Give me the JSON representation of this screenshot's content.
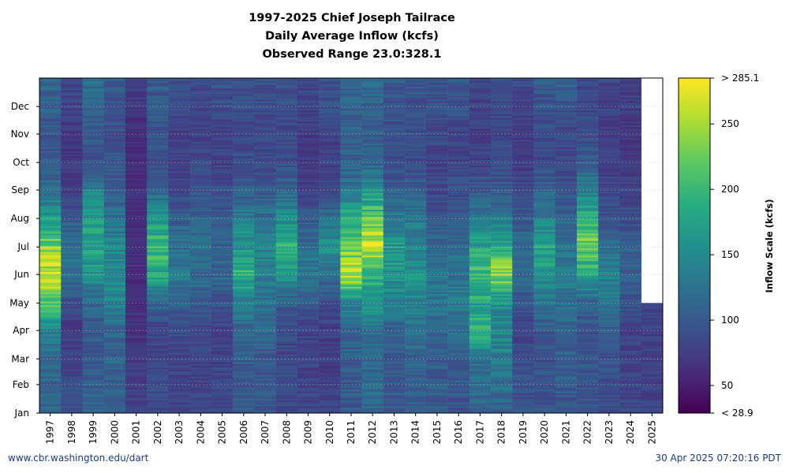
{
  "title": {
    "line1": "1997-2025 Chief Joseph Tailrace",
    "line2": "Daily Average Inflow (kcfs)",
    "line3": "Observed Range 23.0:328.1"
  },
  "footer": {
    "left": "www.cbr.washington.edu/dart",
    "right": "30 Apr 2025 07:20:16 PDT"
  },
  "chart_data": {
    "type": "heatmap",
    "x": [
      "1997",
      "1998",
      "1999",
      "2000",
      "2001",
      "2002",
      "2003",
      "2004",
      "2005",
      "2006",
      "2007",
      "2008",
      "2009",
      "2010",
      "2011",
      "2012",
      "2013",
      "2014",
      "2015",
      "2016",
      "2017",
      "2018",
      "2019",
      "2020",
      "2021",
      "2022",
      "2023",
      "2024",
      "2025"
    ],
    "y_ticks": [
      "Jan",
      "Feb",
      "Mar",
      "Apr",
      "May",
      "Jun",
      "Jul",
      "Aug",
      "Sep",
      "Oct",
      "Nov",
      "Dec"
    ],
    "y_tick_days": [
      1,
      32,
      60,
      91,
      121,
      152,
      182,
      213,
      244,
      274,
      305,
      335
    ],
    "ylim": [
      1,
      366
    ],
    "colorbar": {
      "label": "Inflow Scale (kcfs)",
      "min": 28.9,
      "max": 285.1,
      "min_label": "< 28.9",
      "max_label": "> 285.1",
      "ticks": [
        50,
        100,
        150,
        200,
        250
      ],
      "colormap": "viridis"
    },
    "last_observed_day_2025": 120,
    "profiles": {
      "1997": [
        [
          1,
          110
        ],
        [
          60,
          115
        ],
        [
          91,
          145
        ],
        [
          121,
          215
        ],
        [
          152,
          255
        ],
        [
          182,
          235
        ],
        [
          213,
          170
        ],
        [
          244,
          120
        ],
        [
          274,
          100
        ],
        [
          305,
          95
        ],
        [
          335,
          110
        ],
        [
          366,
          115
        ]
      ],
      "1998": [
        [
          1,
          95
        ],
        [
          60,
          80
        ],
        [
          91,
          75
        ],
        [
          121,
          90
        ],
        [
          152,
          130
        ],
        [
          182,
          120
        ],
        [
          213,
          100
        ],
        [
          244,
          75
        ],
        [
          274,
          70
        ],
        [
          305,
          70
        ],
        [
          335,
          80
        ],
        [
          366,
          85
        ]
      ],
      "1999": [
        [
          1,
          110
        ],
        [
          60,
          100
        ],
        [
          91,
          100
        ],
        [
          121,
          115
        ],
        [
          152,
          160
        ],
        [
          182,
          175
        ],
        [
          213,
          170
        ],
        [
          244,
          140
        ],
        [
          274,
          100
        ],
        [
          305,
          100
        ],
        [
          335,
          110
        ],
        [
          366,
          120
        ]
      ],
      "2000": [
        [
          1,
          105
        ],
        [
          60,
          110
        ],
        [
          91,
          115
        ],
        [
          121,
          145
        ],
        [
          152,
          150
        ],
        [
          182,
          145
        ],
        [
          213,
          125
        ],
        [
          244,
          105
        ],
        [
          274,
          95
        ],
        [
          305,
          90
        ],
        [
          335,
          95
        ],
        [
          366,
          100
        ]
      ],
      "2001": [
        [
          1,
          80
        ],
        [
          60,
          70
        ],
        [
          91,
          65
        ],
        [
          121,
          65
        ],
        [
          152,
          60
        ],
        [
          182,
          70
        ],
        [
          213,
          60
        ],
        [
          244,
          65
        ],
        [
          274,
          60
        ],
        [
          305,
          60
        ],
        [
          335,
          70
        ],
        [
          366,
          75
        ]
      ],
      "2002": [
        [
          1,
          90
        ],
        [
          60,
          85
        ],
        [
          91,
          80
        ],
        [
          121,
          120
        ],
        [
          152,
          185
        ],
        [
          182,
          200
        ],
        [
          213,
          160
        ],
        [
          244,
          110
        ],
        [
          274,
          95
        ],
        [
          305,
          95
        ],
        [
          335,
          100
        ],
        [
          366,
          100
        ]
      ],
      "2003": [
        [
          1,
          85
        ],
        [
          60,
          80
        ],
        [
          91,
          90
        ],
        [
          121,
          110
        ],
        [
          152,
          130
        ],
        [
          182,
          125
        ],
        [
          213,
          105
        ],
        [
          244,
          85
        ],
        [
          274,
          80
        ],
        [
          305,
          80
        ],
        [
          335,
          85
        ],
        [
          366,
          90
        ]
      ],
      "2004": [
        [
          1,
          85
        ],
        [
          60,
          80
        ],
        [
          91,
          85
        ],
        [
          121,
          100
        ],
        [
          152,
          120
        ],
        [
          182,
          120
        ],
        [
          213,
          105
        ],
        [
          244,
          95
        ],
        [
          274,
          85
        ],
        [
          305,
          80
        ],
        [
          335,
          85
        ],
        [
          366,
          90
        ]
      ],
      "2005": [
        [
          1,
          85
        ],
        [
          60,
          80
        ],
        [
          91,
          80
        ],
        [
          121,
          95
        ],
        [
          152,
          115
        ],
        [
          182,
          110
        ],
        [
          213,
          100
        ],
        [
          244,
          90
        ],
        [
          274,
          80
        ],
        [
          305,
          80
        ],
        [
          335,
          90
        ],
        [
          366,
          95
        ]
      ],
      "2006": [
        [
          1,
          100
        ],
        [
          60,
          105
        ],
        [
          91,
          110
        ],
        [
          121,
          140
        ],
        [
          152,
          195
        ],
        [
          182,
          165
        ],
        [
          213,
          140
        ],
        [
          244,
          105
        ],
        [
          274,
          90
        ],
        [
          305,
          85
        ],
        [
          335,
          90
        ],
        [
          366,
          95
        ]
      ],
      "2007": [
        [
          1,
          100
        ],
        [
          60,
          100
        ],
        [
          91,
          115
        ],
        [
          121,
          125
        ],
        [
          152,
          140
        ],
        [
          182,
          145
        ],
        [
          213,
          125
        ],
        [
          244,
          100
        ],
        [
          274,
          85
        ],
        [
          305,
          85
        ],
        [
          335,
          90
        ],
        [
          366,
          95
        ]
      ],
      "2008": [
        [
          1,
          85
        ],
        [
          60,
          85
        ],
        [
          91,
          90
        ],
        [
          121,
          105
        ],
        [
          152,
          170
        ],
        [
          182,
          195
        ],
        [
          213,
          155
        ],
        [
          244,
          110
        ],
        [
          274,
          90
        ],
        [
          305,
          85
        ],
        [
          335,
          90
        ],
        [
          366,
          95
        ]
      ],
      "2009": [
        [
          1,
          85
        ],
        [
          60,
          80
        ],
        [
          91,
          80
        ],
        [
          121,
          100
        ],
        [
          152,
          130
        ],
        [
          182,
          120
        ],
        [
          213,
          100
        ],
        [
          244,
          80
        ],
        [
          274,
          75
        ],
        [
          305,
          75
        ],
        [
          335,
          80
        ],
        [
          366,
          85
        ]
      ],
      "2010": [
        [
          1,
          80
        ],
        [
          60,
          75
        ],
        [
          91,
          75
        ],
        [
          121,
          90
        ],
        [
          152,
          120
        ],
        [
          182,
          155
        ],
        [
          213,
          120
        ],
        [
          244,
          90
        ],
        [
          274,
          80
        ],
        [
          305,
          80
        ],
        [
          335,
          90
        ],
        [
          366,
          95
        ]
      ],
      "2011": [
        [
          1,
          100
        ],
        [
          60,
          105
        ],
        [
          91,
          110
        ],
        [
          121,
          140
        ],
        [
          152,
          270
        ],
        [
          182,
          215
        ],
        [
          213,
          185
        ],
        [
          244,
          130
        ],
        [
          274,
          110
        ],
        [
          305,
          105
        ],
        [
          335,
          110
        ],
        [
          366,
          115
        ]
      ],
      "2012": [
        [
          1,
          115
        ],
        [
          60,
          115
        ],
        [
          91,
          125
        ],
        [
          121,
          170
        ],
        [
          152,
          190
        ],
        [
          182,
          270
        ],
        [
          213,
          220
        ],
        [
          244,
          160
        ],
        [
          274,
          110
        ],
        [
          305,
          105
        ],
        [
          335,
          110
        ],
        [
          366,
          120
        ]
      ],
      "2013": [
        [
          1,
          100
        ],
        [
          60,
          100
        ],
        [
          91,
          110
        ],
        [
          121,
          140
        ],
        [
          152,
          160
        ],
        [
          182,
          165
        ],
        [
          213,
          135
        ],
        [
          244,
          105
        ],
        [
          274,
          90
        ],
        [
          305,
          90
        ],
        [
          335,
          95
        ],
        [
          366,
          100
        ]
      ],
      "2014": [
        [
          1,
          100
        ],
        [
          60,
          110
        ],
        [
          91,
          125
        ],
        [
          121,
          145
        ],
        [
          152,
          155
        ],
        [
          182,
          150
        ],
        [
          213,
          130
        ],
        [
          244,
          105
        ],
        [
          274,
          90
        ],
        [
          305,
          90
        ],
        [
          335,
          95
        ],
        [
          366,
          100
        ]
      ],
      "2015": [
        [
          1,
          100
        ],
        [
          60,
          105
        ],
        [
          91,
          110
        ],
        [
          121,
          130
        ],
        [
          152,
          130
        ],
        [
          182,
          115
        ],
        [
          213,
          95
        ],
        [
          244,
          85
        ],
        [
          274,
          80
        ],
        [
          305,
          85
        ],
        [
          335,
          95
        ],
        [
          366,
          100
        ]
      ],
      "2016": [
        [
          1,
          95
        ],
        [
          60,
          105
        ],
        [
          91,
          120
        ],
        [
          121,
          135
        ],
        [
          152,
          125
        ],
        [
          182,
          115
        ],
        [
          213,
          100
        ],
        [
          244,
          90
        ],
        [
          274,
          85
        ],
        [
          305,
          85
        ],
        [
          335,
          95
        ],
        [
          366,
          100
        ]
      ],
      "2017": [
        [
          1,
          110
        ],
        [
          60,
          125
        ],
        [
          91,
          195
        ],
        [
          121,
          180
        ],
        [
          152,
          210
        ],
        [
          182,
          175
        ],
        [
          213,
          135
        ],
        [
          244,
          100
        ],
        [
          274,
          80
        ],
        [
          305,
          75
        ],
        [
          335,
          80
        ],
        [
          366,
          85
        ]
      ],
      "2018": [
        [
          1,
          110
        ],
        [
          60,
          140
        ],
        [
          91,
          145
        ],
        [
          121,
          155
        ],
        [
          152,
          245
        ],
        [
          182,
          180
        ],
        [
          213,
          135
        ],
        [
          244,
          100
        ],
        [
          274,
          85
        ],
        [
          305,
          85
        ],
        [
          335,
          90
        ],
        [
          366,
          95
        ]
      ],
      "2019": [
        [
          1,
          95
        ],
        [
          60,
          90
        ],
        [
          91,
          80
        ],
        [
          121,
          95
        ],
        [
          152,
          120
        ],
        [
          182,
          115
        ],
        [
          213,
          100
        ],
        [
          244,
          85
        ],
        [
          274,
          75
        ],
        [
          305,
          75
        ],
        [
          335,
          85
        ],
        [
          366,
          90
        ]
      ],
      "2020": [
        [
          1,
          95
        ],
        [
          60,
          95
        ],
        [
          91,
          100
        ],
        [
          121,
          125
        ],
        [
          152,
          165
        ],
        [
          182,
          175
        ],
        [
          213,
          140
        ],
        [
          244,
          105
        ],
        [
          274,
          90
        ],
        [
          305,
          90
        ],
        [
          335,
          95
        ],
        [
          366,
          100
        ]
      ],
      "2021": [
        [
          1,
          100
        ],
        [
          60,
          105
        ],
        [
          91,
          110
        ],
        [
          121,
          125
        ],
        [
          152,
          130
        ],
        [
          182,
          125
        ],
        [
          213,
          110
        ],
        [
          244,
          95
        ],
        [
          274,
          85
        ],
        [
          305,
          85
        ],
        [
          335,
          95
        ],
        [
          366,
          110
        ]
      ],
      "2022": [
        [
          1,
          100
        ],
        [
          60,
          95
        ],
        [
          91,
          90
        ],
        [
          121,
          115
        ],
        [
          152,
          175
        ],
        [
          182,
          240
        ],
        [
          213,
          185
        ],
        [
          244,
          140
        ],
        [
          274,
          105
        ],
        [
          305,
          90
        ],
        [
          335,
          85
        ],
        [
          366,
          90
        ]
      ],
      "2023": [
        [
          1,
          90
        ],
        [
          60,
          95
        ],
        [
          91,
          100
        ],
        [
          121,
          130
        ],
        [
          152,
          140
        ],
        [
          182,
          120
        ],
        [
          213,
          95
        ],
        [
          244,
          85
        ],
        [
          274,
          75
        ],
        [
          305,
          75
        ],
        [
          335,
          80
        ],
        [
          366,
          85
        ]
      ],
      "2024": [
        [
          1,
          85
        ],
        [
          60,
          80
        ],
        [
          91,
          80
        ],
        [
          121,
          95
        ],
        [
          152,
          110
        ],
        [
          182,
          105
        ],
        [
          213,
          90
        ],
        [
          244,
          80
        ],
        [
          274,
          70
        ],
        [
          305,
          70
        ],
        [
          335,
          75
        ],
        [
          366,
          80
        ]
      ],
      "2025": [
        [
          1,
          80
        ],
        [
          60,
          80
        ],
        [
          91,
          80
        ],
        [
          120,
          85
        ]
      ]
    }
  }
}
